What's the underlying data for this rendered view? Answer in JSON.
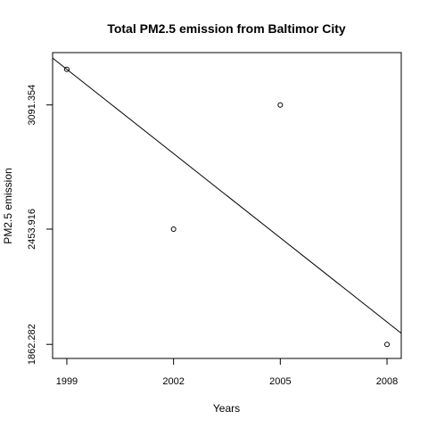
{
  "chart_data": {
    "type": "scatter",
    "title": "Total PM2.5 emission from Baltimor City",
    "xlabel": "Years",
    "ylabel": "PM2.5 emission",
    "x_ticks": [
      1999,
      2002,
      2005,
      2008
    ],
    "y_ticks": [
      1862.282,
      2453.916,
      3091.354
    ],
    "y_tick_labels": [
      "1862.282",
      "2453.916",
      "3091.354"
    ],
    "xlim": [
      1998.6,
      2008.4
    ],
    "ylim": [
      1790,
      3360
    ],
    "points": [
      {
        "x": 1999,
        "y": 3274.18
      },
      {
        "x": 2002,
        "y": 2453.916
      },
      {
        "x": 2005,
        "y": 3091.354
      },
      {
        "x": 2008,
        "y": 1862.282
      }
    ],
    "trend_line": {
      "intercept_at_x0": 3274.18,
      "x0": 1999,
      "slope": -144.13
    },
    "grid": false,
    "legend": "none"
  }
}
